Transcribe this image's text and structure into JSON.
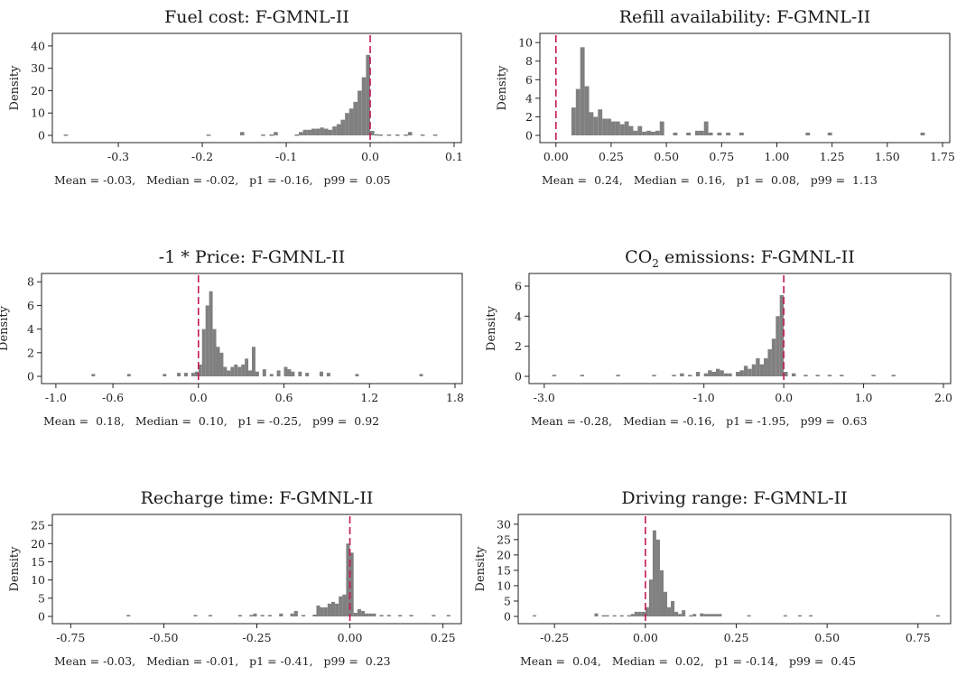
{
  "chart_data": [
    {
      "type": "histogram",
      "title": "Fuel cost:  F-GMNL-II",
      "ylabel": "Density",
      "xlim": [
        -0.37,
        0.1
      ],
      "ylim": [
        0,
        44
      ],
      "xticks": [
        -0.3,
        -0.2,
        -0.1,
        0.0,
        0.1
      ],
      "xtick_labels": [
        "-0.3",
        "-0.2",
        "-0.1",
        "0.0",
        "0.1"
      ],
      "yticks": [
        0,
        10,
        20,
        30,
        40
      ],
      "ytick_labels": [
        "0",
        "10",
        "20",
        "30",
        "40"
      ],
      "refline": 0.0,
      "bin_width": 0.005,
      "bins": [
        [
          -0.365,
          0.4
        ],
        [
          -0.195,
          0.4
        ],
        [
          -0.155,
          1.5
        ],
        [
          -0.13,
          0.4
        ],
        [
          -0.12,
          0.4
        ],
        [
          -0.115,
          1.5
        ],
        [
          -0.09,
          0.4
        ],
        [
          -0.085,
          1.5
        ],
        [
          -0.08,
          2.5
        ],
        [
          -0.075,
          2.5
        ],
        [
          -0.07,
          3.0
        ],
        [
          -0.065,
          3.0
        ],
        [
          -0.06,
          3.5
        ],
        [
          -0.055,
          3.0
        ],
        [
          -0.05,
          2.5
        ],
        [
          -0.045,
          4.0
        ],
        [
          -0.04,
          5.0
        ],
        [
          -0.035,
          7.0
        ],
        [
          -0.03,
          10.0
        ],
        [
          -0.025,
          12.0
        ],
        [
          -0.02,
          15.0
        ],
        [
          -0.015,
          20.0
        ],
        [
          -0.01,
          26.0
        ],
        [
          -0.005,
          36.0
        ],
        [
          0.0,
          2.0
        ],
        [
          0.005,
          0.5
        ],
        [
          0.01,
          0.4
        ],
        [
          0.02,
          0.4
        ],
        [
          0.03,
          0.4
        ],
        [
          0.04,
          0.4
        ],
        [
          0.045,
          1.5
        ],
        [
          0.06,
          0.4
        ],
        [
          0.075,
          0.4
        ]
      ],
      "stats": "Mean = -0.03,   Median = -0.02,   p1 = -0.16,   p99 =  0.05"
    },
    {
      "type": "histogram",
      "title": "Refill availability:  F-GMNL-II",
      "ylabel": "Density",
      "xlim": [
        -0.04,
        1.75
      ],
      "ylim": [
        0,
        10.6
      ],
      "xticks": [
        0,
        0.25,
        0.5,
        0.75,
        1.0,
        1.25,
        1.5,
        1.75
      ],
      "xtick_labels": [
        "0.00",
        "0.25",
        "0.50",
        "0.75",
        "1.00",
        "1.25",
        "1.50",
        "1.75"
      ],
      "yticks": [
        0,
        2,
        4,
        6,
        8,
        10
      ],
      "ytick_labels": [
        "0",
        "2",
        "4",
        "6",
        "8",
        "10"
      ],
      "refline": 0.0,
      "bin_width": 0.02,
      "bins": [
        [
          0.07,
          3.0
        ],
        [
          0.09,
          5.0
        ],
        [
          0.11,
          9.5
        ],
        [
          0.13,
          5.3
        ],
        [
          0.15,
          2.5
        ],
        [
          0.17,
          2.0
        ],
        [
          0.19,
          2.8
        ],
        [
          0.21,
          1.8
        ],
        [
          0.23,
          1.8
        ],
        [
          0.25,
          1.5
        ],
        [
          0.27,
          1.5
        ],
        [
          0.29,
          1.2
        ],
        [
          0.31,
          1.5
        ],
        [
          0.33,
          1.0
        ],
        [
          0.35,
          0.5
        ],
        [
          0.37,
          1.0
        ],
        [
          0.39,
          0.4
        ],
        [
          0.41,
          0.5
        ],
        [
          0.43,
          0.4
        ],
        [
          0.45,
          0.5
        ],
        [
          0.47,
          1.5
        ],
        [
          0.53,
          0.3
        ],
        [
          0.59,
          0.3
        ],
        [
          0.63,
          0.5
        ],
        [
          0.65,
          0.5
        ],
        [
          0.67,
          1.5
        ],
        [
          0.69,
          0.3
        ],
        [
          0.73,
          0.3
        ],
        [
          0.77,
          0.3
        ],
        [
          0.83,
          0.3
        ],
        [
          1.13,
          0.3
        ],
        [
          1.23,
          0.3
        ],
        [
          1.65,
          0.3
        ]
      ],
      "stats": "Mean =  0.24,   Median =  0.16,   p1 =  0.08,   p99 =  1.13"
    },
    {
      "type": "histogram",
      "title": "-1 * Price:  F-GMNL-II",
      "ylabel": "Density",
      "xlim": [
        -1.05,
        1.8
      ],
      "ylim": [
        0,
        8.4
      ],
      "xticks": [
        -1.0,
        -0.6,
        0.0,
        0.6,
        1.2,
        1.8
      ],
      "xtick_labels": [
        "-1.0",
        "-0.6",
        "0.0",
        "0.6",
        "1.2",
        "1.8"
      ],
      "yticks": [
        0,
        2,
        4,
        6,
        8
      ],
      "ytick_labels": [
        "0",
        "2",
        "4",
        "6",
        "8"
      ],
      "refline": 0.0,
      "bin_width": 0.025,
      "bins": [
        [
          -0.75,
          0.2
        ],
        [
          -0.5,
          0.2
        ],
        [
          -0.25,
          0.2
        ],
        [
          -0.15,
          0.3
        ],
        [
          -0.1,
          0.3
        ],
        [
          -0.05,
          0.3
        ],
        [
          -0.025,
          0.4
        ],
        [
          0.0,
          1.0
        ],
        [
          0.025,
          4.0
        ],
        [
          0.05,
          6.0
        ],
        [
          0.075,
          7.2
        ],
        [
          0.1,
          4.0
        ],
        [
          0.125,
          2.5
        ],
        [
          0.15,
          2.0
        ],
        [
          0.175,
          0.8
        ],
        [
          0.2,
          0.5
        ],
        [
          0.225,
          0.8
        ],
        [
          0.25,
          1.0
        ],
        [
          0.275,
          0.8
        ],
        [
          0.3,
          1.0
        ],
        [
          0.325,
          1.5
        ],
        [
          0.35,
          0.5
        ],
        [
          0.375,
          2.5
        ],
        [
          0.4,
          0.4
        ],
        [
          0.45,
          0.6
        ],
        [
          0.5,
          0.2
        ],
        [
          0.55,
          0.5
        ],
        [
          0.6,
          0.8
        ],
        [
          0.625,
          0.6
        ],
        [
          0.65,
          0.4
        ],
        [
          0.7,
          0.4
        ],
        [
          0.75,
          0.3
        ],
        [
          0.85,
          0.4
        ],
        [
          0.9,
          0.3
        ],
        [
          1.1,
          0.2
        ],
        [
          1.55,
          0.2
        ]
      ],
      "stats": "Mean =  0.18,   Median =  0.10,   p1 = -0.25,   p99 =  0.92"
    },
    {
      "type": "histogram",
      "title": "CO emissions:  F-GMNL-II",
      "title_parts": [
        "CO",
        "2",
        " emissions:  F-GMNL-II"
      ],
      "ylabel": "Density",
      "xlim": [
        -3.1,
        2.0
      ],
      "ylim": [
        0,
        6.6
      ],
      "xticks": [
        -3.0,
        -1.0,
        0.0,
        1.0,
        2.0
      ],
      "xtick_labels": [
        "-3.0",
        "-1.0",
        "0.0",
        "1.0",
        "2.0"
      ],
      "yticks": [
        0,
        2,
        4,
        6
      ],
      "ytick_labels": [
        "0",
        "2",
        "4",
        "6"
      ],
      "refline": 0.0,
      "bin_width": 0.05,
      "bins": [
        [
          -2.9,
          0.1
        ],
        [
          -2.55,
          0.1
        ],
        [
          -2.1,
          0.1
        ],
        [
          -1.65,
          0.1
        ],
        [
          -1.4,
          0.1
        ],
        [
          -1.3,
          0.2
        ],
        [
          -1.2,
          0.1
        ],
        [
          -1.1,
          0.3
        ],
        [
          -1.0,
          0.2
        ],
        [
          -0.95,
          0.4
        ],
        [
          -0.9,
          0.3
        ],
        [
          -0.85,
          0.5
        ],
        [
          -0.8,
          0.4
        ],
        [
          -0.75,
          0.2
        ],
        [
          -0.7,
          0.2
        ],
        [
          -0.6,
          0.3
        ],
        [
          -0.55,
          0.4
        ],
        [
          -0.5,
          0.7
        ],
        [
          -0.45,
          0.5
        ],
        [
          -0.4,
          0.8
        ],
        [
          -0.35,
          1.2
        ],
        [
          -0.3,
          0.8
        ],
        [
          -0.25,
          1.2
        ],
        [
          -0.2,
          1.8
        ],
        [
          -0.15,
          2.5
        ],
        [
          -0.1,
          4.0
        ],
        [
          -0.05,
          5.4
        ],
        [
          0.0,
          0.3
        ],
        [
          0.1,
          0.2
        ],
        [
          0.25,
          0.1
        ],
        [
          0.4,
          0.1
        ],
        [
          0.55,
          0.1
        ],
        [
          0.7,
          0.1
        ],
        [
          1.1,
          0.1
        ],
        [
          1.35,
          0.1
        ]
      ],
      "stats": "Mean = -0.28,   Median = -0.16,   p1 = -1.95,   p99 =  0.63"
    },
    {
      "type": "histogram",
      "title": "Recharge time:  F-GMNL-II",
      "ylabel": "Density",
      "xlim": [
        -0.78,
        0.28
      ],
      "ylim": [
        0,
        27
      ],
      "xticks": [
        -0.75,
        -0.5,
        -0.25,
        0.0,
        0.25
      ],
      "xtick_labels": [
        "-0.75",
        "-0.50",
        "-0.25",
        "0.00",
        "0.25"
      ],
      "yticks": [
        0,
        5,
        10,
        15,
        20,
        25
      ],
      "ytick_labels": [
        "0",
        "5",
        "10",
        "15",
        "20",
        "25"
      ],
      "refline": 0.0,
      "bin_width": 0.01,
      "bins": [
        [
          -0.6,
          0.4
        ],
        [
          -0.42,
          0.4
        ],
        [
          -0.38,
          0.4
        ],
        [
          -0.3,
          0.4
        ],
        [
          -0.27,
          0.4
        ],
        [
          -0.26,
          0.8
        ],
        [
          -0.24,
          0.4
        ],
        [
          -0.22,
          0.4
        ],
        [
          -0.19,
          0.8
        ],
        [
          -0.16,
          0.8
        ],
        [
          -0.15,
          1.5
        ],
        [
          -0.13,
          0.4
        ],
        [
          -0.1,
          0.5
        ],
        [
          -0.09,
          3.0
        ],
        [
          -0.08,
          2.5
        ],
        [
          -0.07,
          2.5
        ],
        [
          -0.06,
          3.5
        ],
        [
          -0.05,
          4.0
        ],
        [
          -0.04,
          3.5
        ],
        [
          -0.03,
          5.5
        ],
        [
          -0.02,
          6.0
        ],
        [
          -0.01,
          20.0
        ],
        [
          0.0,
          17.5
        ],
        [
          0.01,
          1.0
        ],
        [
          0.02,
          2.0
        ],
        [
          0.03,
          1.5
        ],
        [
          0.04,
          0.8
        ],
        [
          0.05,
          0.8
        ],
        [
          0.06,
          0.8
        ],
        [
          0.08,
          0.4
        ],
        [
          0.1,
          0.4
        ],
        [
          0.13,
          0.4
        ],
        [
          0.16,
          0.4
        ],
        [
          0.22,
          0.4
        ],
        [
          0.26,
          0.4
        ]
      ],
      "stats": "Mean = -0.03,   Median = -0.01,   p1 = -0.41,   p99 =  0.23"
    },
    {
      "type": "histogram",
      "title": "Driving range:  F-GMNL-II",
      "ylabel": "Density",
      "xlim": [
        -0.33,
        0.82
      ],
      "ylim": [
        0,
        32
      ],
      "xticks": [
        -0.25,
        0.0,
        0.25,
        0.5,
        0.75
      ],
      "xtick_labels": [
        "-0.25",
        "0.00",
        "0.25",
        "0.50",
        "0.75"
      ],
      "yticks": [
        0,
        5,
        10,
        15,
        20,
        25,
        30
      ],
      "ytick_labels": [
        "0",
        "5",
        "10",
        "15",
        "20",
        "25",
        "30"
      ],
      "refline": 0.0,
      "bin_width": 0.01,
      "bins": [
        [
          -0.31,
          0.4
        ],
        [
          -0.14,
          1.0
        ],
        [
          -0.12,
          0.4
        ],
        [
          -0.11,
          0.4
        ],
        [
          -0.09,
          0.4
        ],
        [
          -0.07,
          0.4
        ],
        [
          -0.05,
          0.4
        ],
        [
          -0.04,
          0.8
        ],
        [
          -0.03,
          1.5
        ],
        [
          -0.02,
          1.5
        ],
        [
          -0.01,
          1.5
        ],
        [
          0.0,
          3.0
        ],
        [
          0.01,
          12.0
        ],
        [
          0.02,
          28.0
        ],
        [
          0.03,
          25.0
        ],
        [
          0.04,
          15.0
        ],
        [
          0.05,
          8.0
        ],
        [
          0.06,
          3.0
        ],
        [
          0.07,
          5.0
        ],
        [
          0.08,
          1.5
        ],
        [
          0.09,
          0.8
        ],
        [
          0.1,
          2.0
        ],
        [
          0.12,
          0.4
        ],
        [
          0.13,
          0.8
        ],
        [
          0.15,
          1.0
        ],
        [
          0.16,
          0.8
        ],
        [
          0.17,
          0.8
        ],
        [
          0.18,
          0.8
        ],
        [
          0.19,
          0.8
        ],
        [
          0.2,
          0.8
        ],
        [
          0.28,
          0.4
        ],
        [
          0.38,
          0.4
        ],
        [
          0.42,
          0.4
        ],
        [
          0.45,
          0.4
        ],
        [
          0.8,
          0.4
        ]
      ],
      "stats": "Mean =  0.04,   Median =  0.02,   p1 = -0.14,   p99 =  0.45"
    }
  ]
}
